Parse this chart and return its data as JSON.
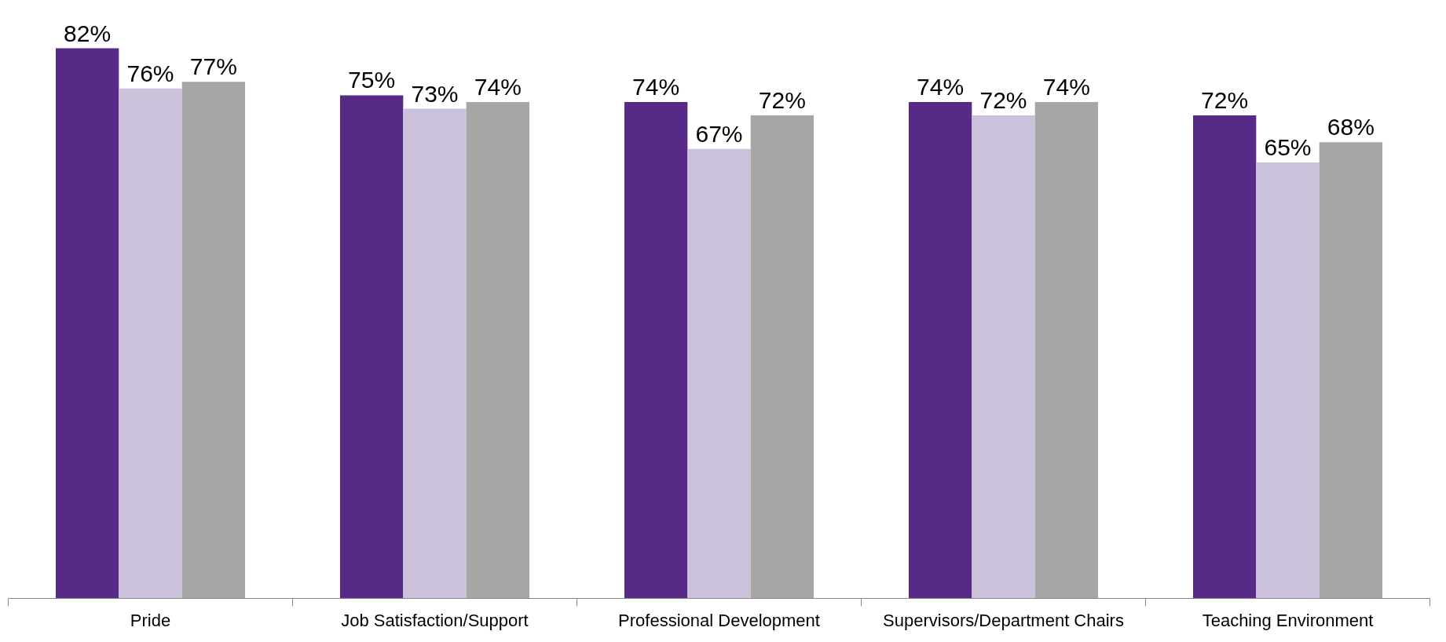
{
  "chart_data": {
    "type": "bar",
    "categories": [
      "Pride",
      "Job Satisfaction/Support",
      "Professional Development",
      "Supervisors/Department Chairs",
      "Teaching Environment"
    ],
    "series": [
      {
        "color": "#582a87",
        "values": [
          82,
          75,
          74,
          74,
          72
        ],
        "value_labels": [
          "82%",
          "75%",
          "74%",
          "74%",
          "72%"
        ]
      },
      {
        "color": "#cbc1da",
        "values": [
          76,
          73,
          67,
          72,
          65
        ],
        "value_labels": [
          "76%",
          "73%",
          "67%",
          "72%",
          "65%"
        ]
      },
      {
        "color": "#a6a6a6",
        "values": [
          77,
          74,
          72,
          74,
          68
        ],
        "value_labels": [
          "77%",
          "74%",
          "72%",
          "74%",
          "68%"
        ]
      }
    ],
    "grid": false
  }
}
